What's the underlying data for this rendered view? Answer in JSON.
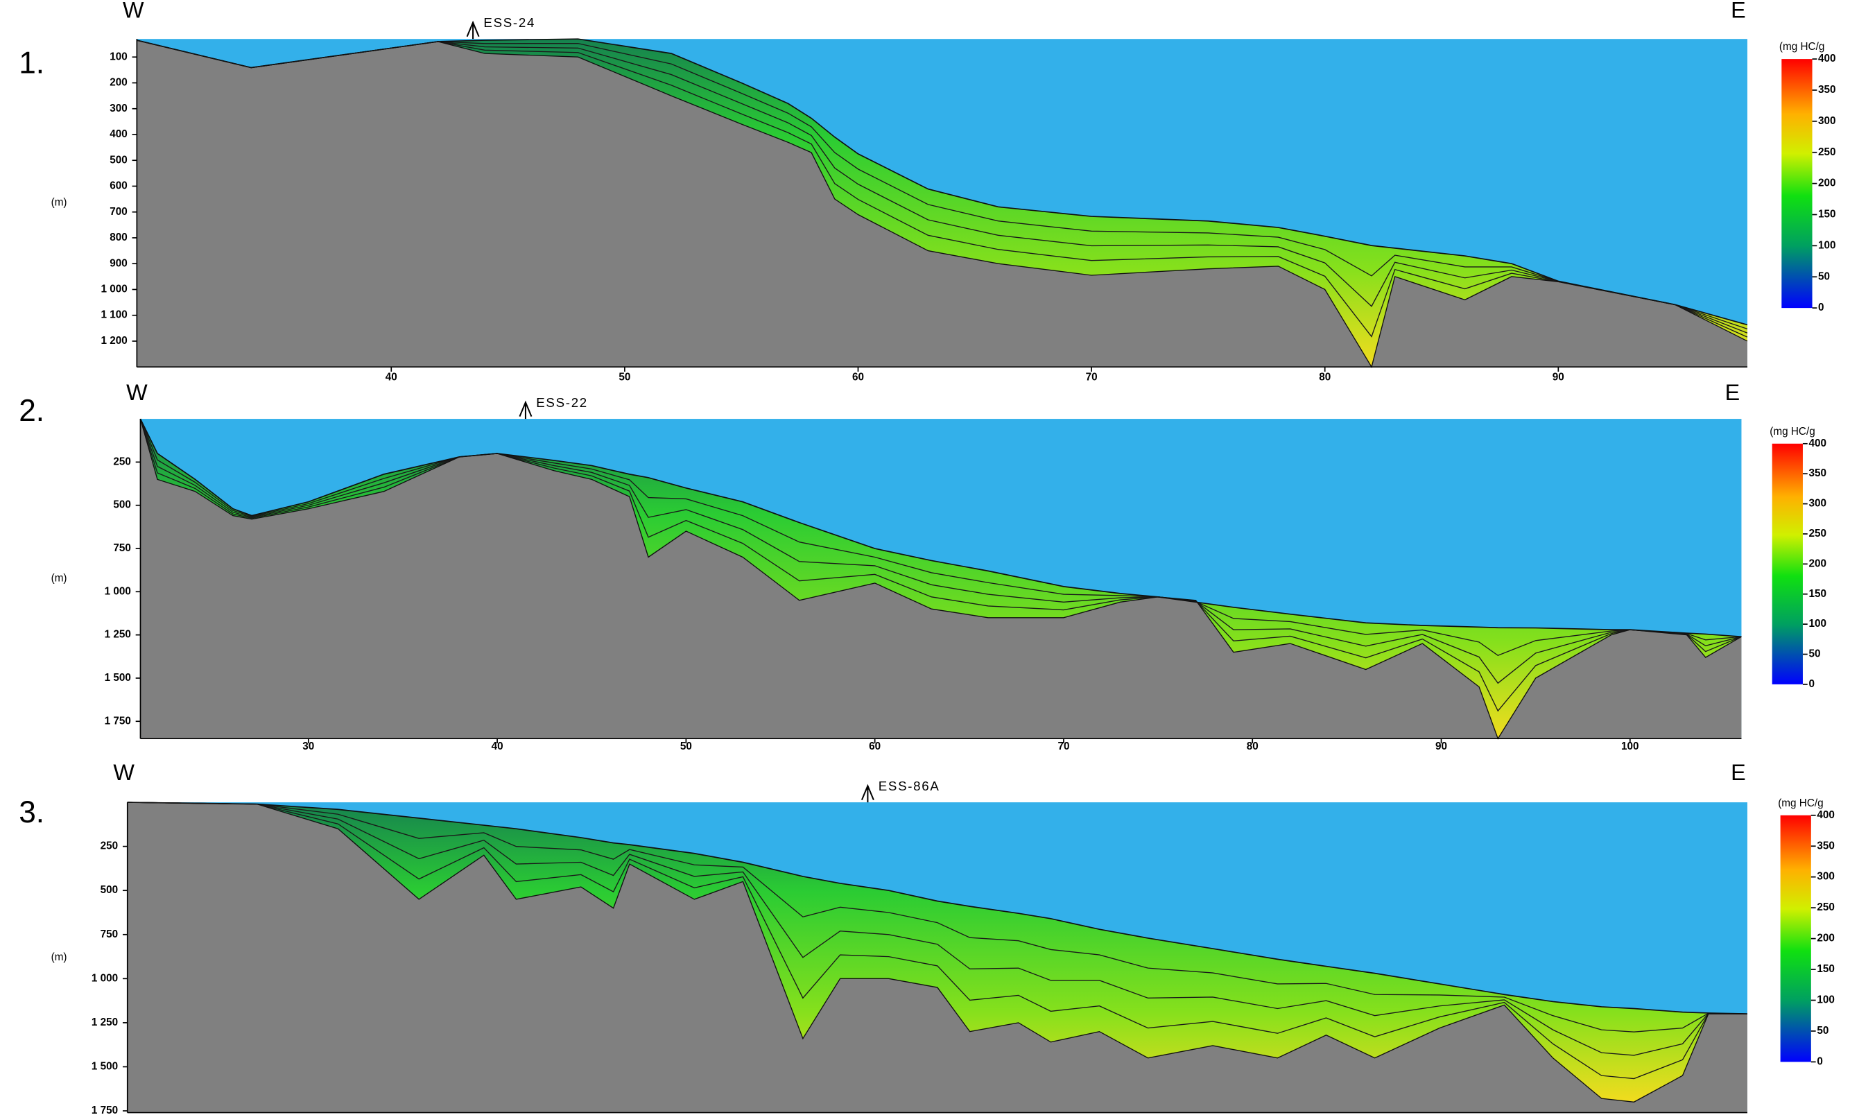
{
  "chart_data": [
    {
      "type": "section",
      "label": "1.",
      "west": "W",
      "east": "E",
      "well": "ESS-24",
      "well_x": 43.5,
      "ylabel": "(m)",
      "xlim": [
        29.1,
        98.1
      ],
      "ylim": [
        30,
        1300
      ],
      "xticks": [
        40,
        50,
        60,
        70,
        80,
        90
      ],
      "yticks": [
        100,
        200,
        300,
        400,
        500,
        600,
        700,
        800,
        900,
        {
          "value": 1000,
          "label": "1 000"
        },
        {
          "value": 1100,
          "label": "1 100"
        },
        {
          "value": 1200,
          "label": "1 200"
        }
      ],
      "x": [
        29.1,
        34,
        42,
        44,
        48,
        52,
        55,
        57,
        58,
        59,
        60,
        63,
        66,
        70,
        75,
        78,
        80,
        82,
        83,
        86,
        88,
        90,
        95,
        98.1
      ],
      "seafloor": [
        35,
        141,
        40,
        35,
        30,
        86,
        200,
        280,
        337,
        410,
        475,
        611,
        680,
        717,
        735,
        760,
        794,
        830,
        840,
        870,
        900,
        968,
        1059,
        1137
      ],
      "base": [
        35,
        141,
        40,
        86,
        100,
        250,
        360,
        430,
        470,
        650,
        710,
        850,
        900,
        945,
        920,
        910,
        1000,
        1300,
        950,
        1040,
        950,
        970,
        1059,
        1200
      ],
      "colorbar": {
        "title": "(mg HC/g",
        "lim": [
          0,
          400
        ],
        "ticks": [
          0,
          50,
          100,
          150,
          200,
          250,
          300,
          350,
          400
        ]
      }
    },
    {
      "type": "section",
      "label": "2.",
      "west": "W",
      "east": "E",
      "well": "ESS-22",
      "well_x": 41.5,
      "ylabel": "(m)",
      "xlim": [
        21.1,
        105.9
      ],
      "ylim": [
        0,
        1850
      ],
      "xticks": [
        30,
        40,
        50,
        60,
        70,
        80,
        90,
        100
      ],
      "yticks": [
        250,
        500,
        750,
        {
          "value": 1000,
          "label": "1 000"
        },
        {
          "value": 1250,
          "label": "1 250"
        },
        {
          "value": 1500,
          "label": "1 500"
        },
        {
          "value": 1750,
          "label": "1 750"
        }
      ],
      "x": [
        21.1,
        22,
        24,
        26,
        27,
        30,
        34,
        38,
        40,
        43,
        45,
        47,
        48,
        50,
        53,
        56,
        60,
        63,
        66,
        70,
        73,
        75,
        77,
        79,
        82,
        86,
        89,
        92,
        93,
        95,
        99,
        100,
        103,
        104,
        105.9
      ],
      "seafloor": [
        0,
        200,
        350,
        520,
        560,
        480,
        320,
        220,
        200,
        240,
        270,
        320,
        340,
        400,
        480,
        600,
        750,
        820,
        880,
        970,
        1010,
        1030,
        1060,
        1090,
        1130,
        1180,
        1195,
        1205,
        1208,
        1210,
        1220,
        1220,
        1240,
        1245,
        1260
      ],
      "base": [
        0,
        350,
        420,
        560,
        580,
        520,
        420,
        220,
        200,
        300,
        350,
        450,
        800,
        650,
        800,
        1050,
        950,
        1100,
        1150,
        1150,
        1060,
        1030,
        1050,
        1350,
        1300,
        1450,
        1300,
        1550,
        1850,
        1500,
        1250,
        1220,
        1250,
        1380,
        1260
      ],
      "colorbar": {
        "title": "(mg HC/g",
        "lim": [
          0,
          400
        ],
        "ticks": [
          0,
          50,
          100,
          150,
          200,
          250,
          300,
          350,
          400
        ]
      }
    },
    {
      "type": "section",
      "label": "3.",
      "west": "W",
      "east": "E",
      "well": "ESS-86A",
      "well_x": 45.7,
      "ylabel": "(m)",
      "xlim": [
        0,
        100
      ],
      "ylim": [
        0,
        1760
      ],
      "yticks": [
        250,
        500,
        750,
        {
          "value": 1000,
          "label": "1 000"
        },
        {
          "value": 1250,
          "label": "1 250"
        },
        {
          "value": 1500,
          "label": "1 500"
        },
        {
          "value": 1750,
          "label": "1 750"
        }
      ],
      "x": [
        0,
        8,
        13,
        18,
        22,
        24,
        28,
        30,
        31,
        35,
        38,
        41.7,
        44,
        47,
        50,
        52,
        55,
        57,
        60,
        63,
        67,
        71,
        74,
        77,
        81,
        85,
        88,
        91,
        93,
        96,
        97.6,
        100
      ],
      "seafloor": [
        0,
        10,
        40,
        90,
        130,
        150,
        200,
        230,
        240,
        290,
        340,
        420,
        460,
        500,
        560,
        590,
        630,
        660,
        720,
        770,
        830,
        890,
        930,
        970,
        1030,
        1090,
        1130,
        1160,
        1170,
        1190,
        1195,
        1200
      ],
      "base": [
        0,
        10,
        150,
        550,
        300,
        550,
        480,
        600,
        350,
        550,
        450,
        1340,
        1000,
        1000,
        1050,
        1300,
        1250,
        1360,
        1300,
        1450,
        1380,
        1450,
        1320,
        1450,
        1280,
        1150,
        1450,
        1680,
        1700,
        1550,
        1200,
        1200
      ],
      "colorbar": {
        "title": "(mg HC/g",
        "lim": [
          0,
          400
        ],
        "ticks": [
          0,
          50,
          100,
          150,
          200,
          250,
          300,
          350,
          400
        ]
      }
    }
  ]
}
